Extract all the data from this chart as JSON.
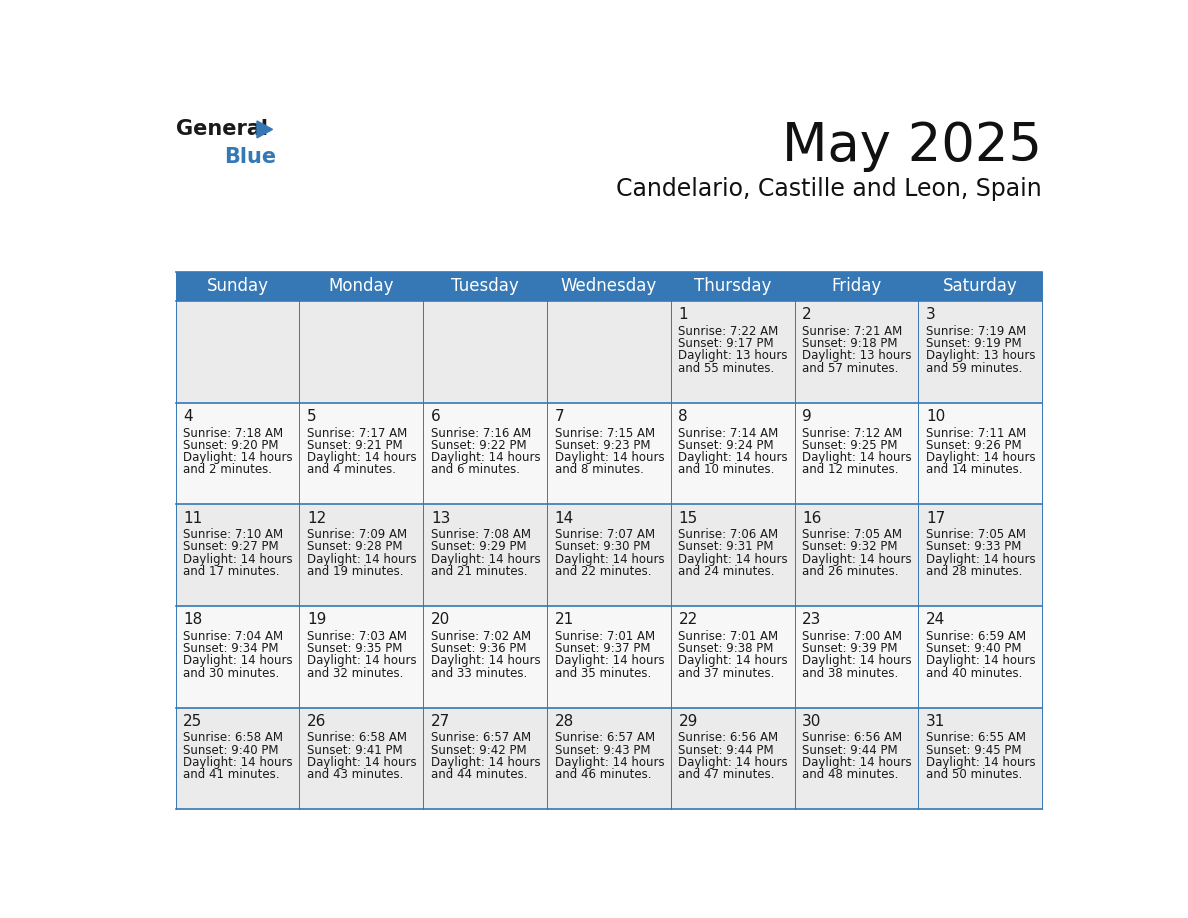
{
  "title": "May 2025",
  "subtitle": "Candelario, Castille and Leon, Spain",
  "header_color": "#3578b5",
  "header_text_color": "#ffffff",
  "day_names": [
    "Sunday",
    "Monday",
    "Tuesday",
    "Wednesday",
    "Thursday",
    "Friday",
    "Saturday"
  ],
  "cell_bg_even": "#ebebeb",
  "cell_bg_odd": "#f7f7f7",
  "cell_border_color": "#3578b5",
  "background_color": "#ffffff",
  "days": [
    {
      "day": 1,
      "col": 4,
      "row": 0,
      "sunrise": "7:22 AM",
      "sunset": "9:17 PM",
      "daylight_h": "13 hours",
      "daylight_m": "55 minutes."
    },
    {
      "day": 2,
      "col": 5,
      "row": 0,
      "sunrise": "7:21 AM",
      "sunset": "9:18 PM",
      "daylight_h": "13 hours",
      "daylight_m": "57 minutes."
    },
    {
      "day": 3,
      "col": 6,
      "row": 0,
      "sunrise": "7:19 AM",
      "sunset": "9:19 PM",
      "daylight_h": "13 hours",
      "daylight_m": "59 minutes."
    },
    {
      "day": 4,
      "col": 0,
      "row": 1,
      "sunrise": "7:18 AM",
      "sunset": "9:20 PM",
      "daylight_h": "14 hours",
      "daylight_m": "2 minutes."
    },
    {
      "day": 5,
      "col": 1,
      "row": 1,
      "sunrise": "7:17 AM",
      "sunset": "9:21 PM",
      "daylight_h": "14 hours",
      "daylight_m": "4 minutes."
    },
    {
      "day": 6,
      "col": 2,
      "row": 1,
      "sunrise": "7:16 AM",
      "sunset": "9:22 PM",
      "daylight_h": "14 hours",
      "daylight_m": "6 minutes."
    },
    {
      "day": 7,
      "col": 3,
      "row": 1,
      "sunrise": "7:15 AM",
      "sunset": "9:23 PM",
      "daylight_h": "14 hours",
      "daylight_m": "8 minutes."
    },
    {
      "day": 8,
      "col": 4,
      "row": 1,
      "sunrise": "7:14 AM",
      "sunset": "9:24 PM",
      "daylight_h": "14 hours",
      "daylight_m": "10 minutes."
    },
    {
      "day": 9,
      "col": 5,
      "row": 1,
      "sunrise": "7:12 AM",
      "sunset": "9:25 PM",
      "daylight_h": "14 hours",
      "daylight_m": "12 minutes."
    },
    {
      "day": 10,
      "col": 6,
      "row": 1,
      "sunrise": "7:11 AM",
      "sunset": "9:26 PM",
      "daylight_h": "14 hours",
      "daylight_m": "14 minutes."
    },
    {
      "day": 11,
      "col": 0,
      "row": 2,
      "sunrise": "7:10 AM",
      "sunset": "9:27 PM",
      "daylight_h": "14 hours",
      "daylight_m": "17 minutes."
    },
    {
      "day": 12,
      "col": 1,
      "row": 2,
      "sunrise": "7:09 AM",
      "sunset": "9:28 PM",
      "daylight_h": "14 hours",
      "daylight_m": "19 minutes."
    },
    {
      "day": 13,
      "col": 2,
      "row": 2,
      "sunrise": "7:08 AM",
      "sunset": "9:29 PM",
      "daylight_h": "14 hours",
      "daylight_m": "21 minutes."
    },
    {
      "day": 14,
      "col": 3,
      "row": 2,
      "sunrise": "7:07 AM",
      "sunset": "9:30 PM",
      "daylight_h": "14 hours",
      "daylight_m": "22 minutes."
    },
    {
      "day": 15,
      "col": 4,
      "row": 2,
      "sunrise": "7:06 AM",
      "sunset": "9:31 PM",
      "daylight_h": "14 hours",
      "daylight_m": "24 minutes."
    },
    {
      "day": 16,
      "col": 5,
      "row": 2,
      "sunrise": "7:05 AM",
      "sunset": "9:32 PM",
      "daylight_h": "14 hours",
      "daylight_m": "26 minutes."
    },
    {
      "day": 17,
      "col": 6,
      "row": 2,
      "sunrise": "7:05 AM",
      "sunset": "9:33 PM",
      "daylight_h": "14 hours",
      "daylight_m": "28 minutes."
    },
    {
      "day": 18,
      "col": 0,
      "row": 3,
      "sunrise": "7:04 AM",
      "sunset": "9:34 PM",
      "daylight_h": "14 hours",
      "daylight_m": "30 minutes."
    },
    {
      "day": 19,
      "col": 1,
      "row": 3,
      "sunrise": "7:03 AM",
      "sunset": "9:35 PM",
      "daylight_h": "14 hours",
      "daylight_m": "32 minutes."
    },
    {
      "day": 20,
      "col": 2,
      "row": 3,
      "sunrise": "7:02 AM",
      "sunset": "9:36 PM",
      "daylight_h": "14 hours",
      "daylight_m": "33 minutes."
    },
    {
      "day": 21,
      "col": 3,
      "row": 3,
      "sunrise": "7:01 AM",
      "sunset": "9:37 PM",
      "daylight_h": "14 hours",
      "daylight_m": "35 minutes."
    },
    {
      "day": 22,
      "col": 4,
      "row": 3,
      "sunrise": "7:01 AM",
      "sunset": "9:38 PM",
      "daylight_h": "14 hours",
      "daylight_m": "37 minutes."
    },
    {
      "day": 23,
      "col": 5,
      "row": 3,
      "sunrise": "7:00 AM",
      "sunset": "9:39 PM",
      "daylight_h": "14 hours",
      "daylight_m": "38 minutes."
    },
    {
      "day": 24,
      "col": 6,
      "row": 3,
      "sunrise": "6:59 AM",
      "sunset": "9:40 PM",
      "daylight_h": "14 hours",
      "daylight_m": "40 minutes."
    },
    {
      "day": 25,
      "col": 0,
      "row": 4,
      "sunrise": "6:58 AM",
      "sunset": "9:40 PM",
      "daylight_h": "14 hours",
      "daylight_m": "41 minutes."
    },
    {
      "day": 26,
      "col": 1,
      "row": 4,
      "sunrise": "6:58 AM",
      "sunset": "9:41 PM",
      "daylight_h": "14 hours",
      "daylight_m": "43 minutes."
    },
    {
      "day": 27,
      "col": 2,
      "row": 4,
      "sunrise": "6:57 AM",
      "sunset": "9:42 PM",
      "daylight_h": "14 hours",
      "daylight_m": "44 minutes."
    },
    {
      "day": 28,
      "col": 3,
      "row": 4,
      "sunrise": "6:57 AM",
      "sunset": "9:43 PM",
      "daylight_h": "14 hours",
      "daylight_m": "46 minutes."
    },
    {
      "day": 29,
      "col": 4,
      "row": 4,
      "sunrise": "6:56 AM",
      "sunset": "9:44 PM",
      "daylight_h": "14 hours",
      "daylight_m": "47 minutes."
    },
    {
      "day": 30,
      "col": 5,
      "row": 4,
      "sunrise": "6:56 AM",
      "sunset": "9:44 PM",
      "daylight_h": "14 hours",
      "daylight_m": "48 minutes."
    },
    {
      "day": 31,
      "col": 6,
      "row": 4,
      "sunrise": "6:55 AM",
      "sunset": "9:45 PM",
      "daylight_h": "14 hours",
      "daylight_m": "50 minutes."
    }
  ],
  "logo_general_color": "#1a1a1a",
  "logo_blue_color": "#3578b5",
  "title_fontsize": 38,
  "subtitle_fontsize": 17,
  "day_header_fontsize": 12,
  "day_num_fontsize": 11,
  "cell_text_fontsize": 8.5
}
